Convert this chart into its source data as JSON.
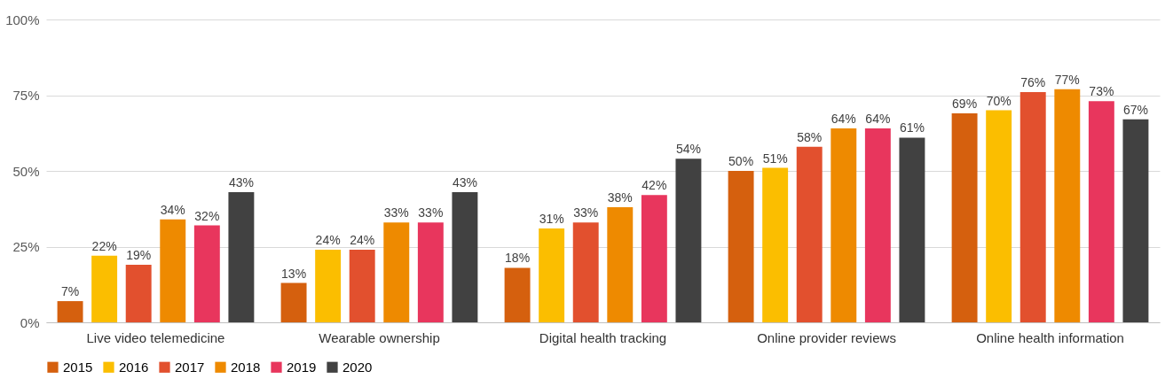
{
  "chart_data": {
    "type": "bar",
    "categories": [
      "Live video telemedicine",
      "Wearable ownership",
      "Digital health tracking",
      "Online provider reviews",
      "Online health information"
    ],
    "series": [
      {
        "name": "2015",
        "color": "#d5600e",
        "values": [
          7,
          13,
          18,
          50,
          69
        ],
        "value_labels": [
          "7%",
          "13%",
          "18%",
          "50%",
          "69%"
        ]
      },
      {
        "name": "2016",
        "color": "#fbbe00",
        "values": [
          22,
          24,
          31,
          51,
          70
        ],
        "value_labels": [
          "22%",
          "24%",
          "31%",
          "51%",
          "70%"
        ]
      },
      {
        "name": "2017",
        "color": "#e2502e",
        "values": [
          19,
          24,
          33,
          58,
          76
        ],
        "value_labels": [
          "19%",
          "24%",
          "33%",
          "58%",
          "76%"
        ]
      },
      {
        "name": "2018",
        "color": "#ee8a00",
        "values": [
          34,
          33,
          38,
          64,
          77
        ],
        "value_labels": [
          "34%",
          "33%",
          "38%",
          "64%",
          "77%"
        ]
      },
      {
        "name": "2019",
        "color": "#e8365d",
        "values": [
          32,
          33,
          42,
          64,
          73
        ],
        "value_labels": [
          "32%",
          "33%",
          "42%",
          "64%",
          "73%"
        ]
      },
      {
        "name": "2020",
        "color": "#414141",
        "values": [
          43,
          43,
          54,
          61,
          67
        ],
        "value_labels": [
          "43%",
          "43%",
          "54%",
          "61%",
          "67%"
        ]
      }
    ],
    "ylim": [
      0,
      100
    ],
    "yticks": [
      {
        "value": 0,
        "label": "0%"
      },
      {
        "value": 25,
        "label": "25%"
      },
      {
        "value": 50,
        "label": "50%"
      },
      {
        "value": 75,
        "label": "75%"
      },
      {
        "value": 100,
        "label": "100%"
      }
    ],
    "grid": "y",
    "legend": "bottom"
  }
}
